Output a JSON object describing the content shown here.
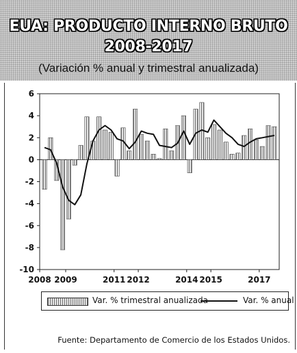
{
  "header": {
    "title_line1": "EUA: PRODUCTO INTERNO BRUTO",
    "title_line2": "2008-2017",
    "subtitle": "(Variación % anual y trimestral anualizada)"
  },
  "legend": {
    "bars_label": "Var. % trimestral anualizada",
    "line_label": "Var. % anual"
  },
  "source": "Fuente:  Departamento de Comercio de los Estados Unidos.",
  "colors": {
    "bar_light": "#e6e6e6",
    "bar_dark": "#6f6f6f",
    "line": "#111111"
  },
  "chart_data": {
    "type": "bar",
    "title": "EUA: PRODUCTO INTERNO BRUTO 2008-2017",
    "subtitle": "(Variación % anual y trimestral anualizada)",
    "ylim": [
      -10,
      6
    ],
    "yticks": [
      -10,
      -8,
      -6,
      -4,
      -2,
      0,
      2,
      4,
      6
    ],
    "xticks": [
      "2008",
      "2009",
      "2011",
      "2012",
      "2014",
      "2015",
      "2017"
    ],
    "series": [
      {
        "name": "Var. % trimestral anualizada",
        "type": "bar",
        "quarters": [
          "2008Q1",
          "2008Q2",
          "2008Q3",
          "2008Q4",
          "2009Q1",
          "2009Q2",
          "2009Q3",
          "2009Q4",
          "2010Q1",
          "2010Q2",
          "2010Q3",
          "2010Q4",
          "2011Q1",
          "2011Q2",
          "2011Q3",
          "2011Q4",
          "2012Q1",
          "2012Q2",
          "2012Q3",
          "2012Q4",
          "2013Q1",
          "2013Q2",
          "2013Q3",
          "2013Q4",
          "2014Q1",
          "2014Q2",
          "2014Q3",
          "2014Q4",
          "2015Q1",
          "2015Q2",
          "2015Q3",
          "2015Q4",
          "2016Q1",
          "2016Q2",
          "2016Q3",
          "2016Q4",
          "2017Q1",
          "2017Q2",
          "2017Q3"
        ],
        "values": [
          -2.7,
          2.0,
          -1.9,
          -8.2,
          -5.4,
          -0.5,
          1.3,
          3.9,
          1.7,
          3.9,
          2.7,
          2.5,
          -1.5,
          2.9,
          0.8,
          4.6,
          2.3,
          1.7,
          0.5,
          0.1,
          2.8,
          0.8,
          3.1,
          4.0,
          -1.2,
          4.6,
          5.2,
          2.0,
          3.2,
          2.7,
          1.6,
          0.5,
          0.6,
          2.2,
          2.8,
          1.8,
          1.2,
          3.1,
          3.0
        ]
      },
      {
        "name": "Var. % anual",
        "type": "line",
        "quarters": [
          "2008Q1",
          "2008Q2",
          "2008Q3",
          "2008Q4",
          "2009Q1",
          "2009Q2",
          "2009Q3",
          "2009Q4",
          "2010Q1",
          "2010Q2",
          "2010Q3",
          "2010Q4",
          "2011Q1",
          "2011Q2",
          "2011Q3",
          "2011Q4",
          "2012Q1",
          "2012Q2",
          "2012Q3",
          "2012Q4",
          "2013Q1",
          "2013Q2",
          "2013Q3",
          "2013Q4",
          "2014Q1",
          "2014Q2",
          "2014Q3",
          "2014Q4",
          "2015Q1",
          "2015Q2",
          "2015Q3",
          "2015Q4",
          "2016Q1",
          "2016Q2",
          "2016Q3",
          "2016Q4",
          "2017Q1",
          "2017Q2",
          "2017Q3"
        ],
        "values": [
          1.1,
          0.9,
          -0.3,
          -2.5,
          -3.7,
          -4.1,
          -3.2,
          -0.4,
          1.7,
          2.7,
          3.1,
          2.7,
          1.9,
          1.7,
          1.0,
          1.6,
          2.6,
          2.4,
          2.3,
          1.3,
          1.2,
          1.1,
          1.5,
          2.6,
          1.4,
          2.4,
          2.7,
          2.5,
          3.6,
          3.0,
          2.4,
          2.0,
          1.4,
          1.2,
          1.6,
          1.9,
          2.0,
          2.1,
          2.2
        ]
      }
    ]
  }
}
